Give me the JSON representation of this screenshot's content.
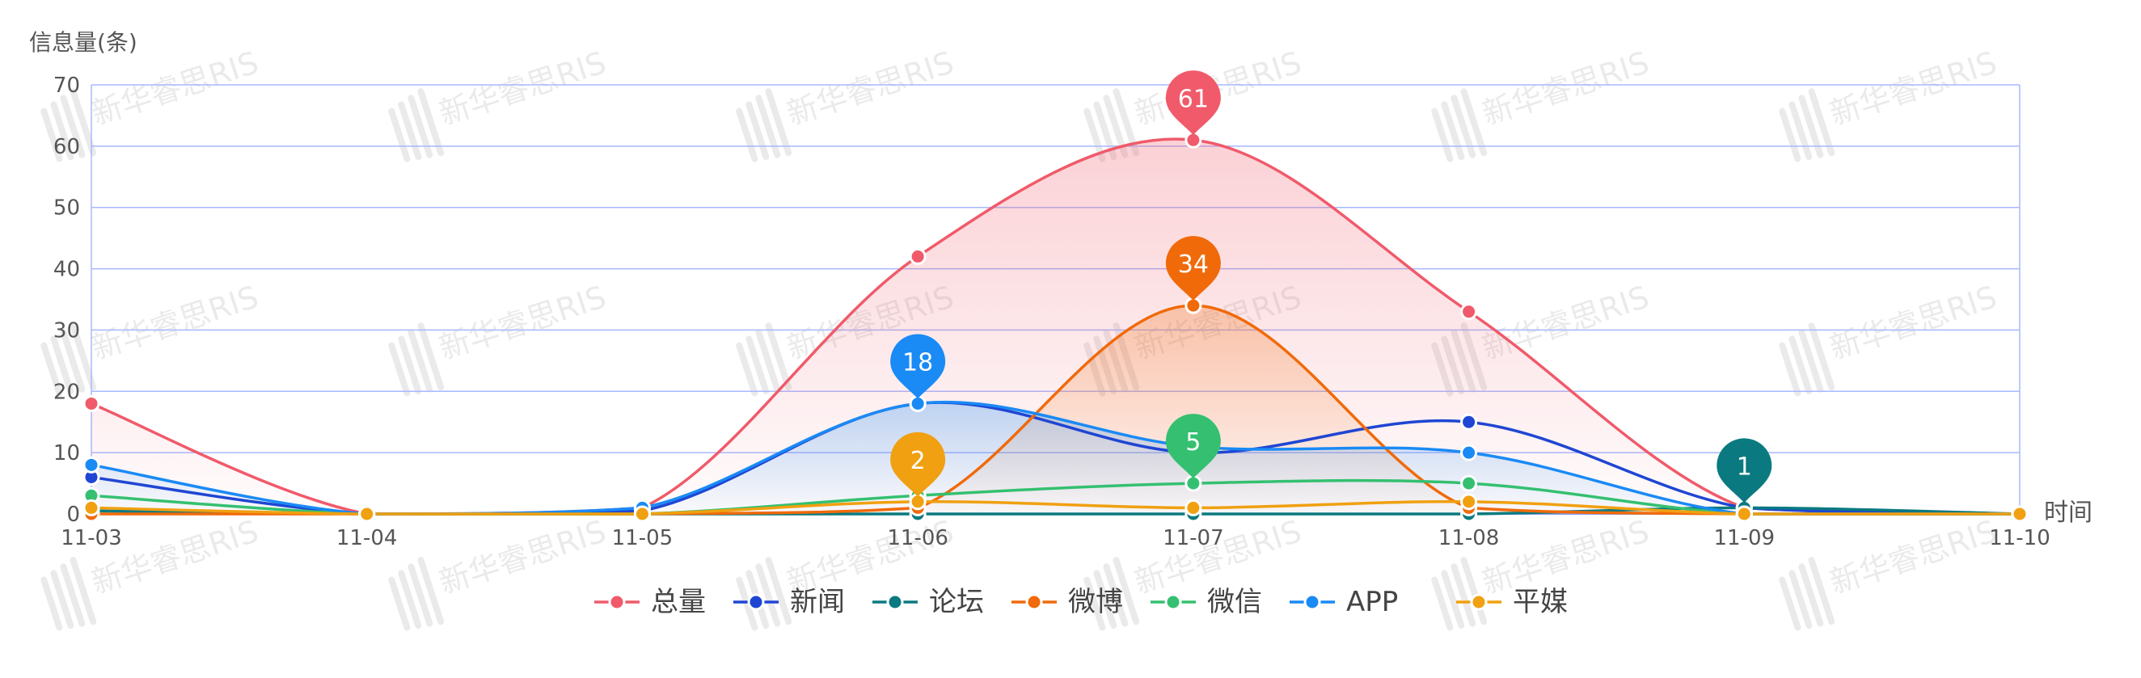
{
  "chart_data": {
    "type": "line",
    "smooth": true,
    "ylabel": "信息量(条)",
    "xlabel": "时间",
    "categories": [
      "11-03",
      "11-04",
      "11-05",
      "11-06",
      "11-07",
      "11-08",
      "11-09",
      "11-10"
    ],
    "ylim": [
      0,
      70
    ],
    "yticks": [
      0,
      10,
      20,
      30,
      40,
      50,
      60,
      70
    ],
    "grid": true,
    "legend_position": "bottom",
    "series": [
      {
        "name": "总量",
        "color": "#f05a6a",
        "area": true,
        "values": [
          18,
          0,
          1,
          42,
          61,
          33,
          1,
          0
        ],
        "max_label": "61"
      },
      {
        "name": "新闻",
        "color": "#1f46d3",
        "area": false,
        "values": [
          6,
          0,
          0.5,
          18,
          10,
          15,
          1,
          0
        ]
      },
      {
        "name": "论坛",
        "color": "#0a7a80",
        "area": false,
        "values": [
          0.5,
          0,
          0,
          0,
          0,
          0,
          1,
          0
        ],
        "max_label": "1"
      },
      {
        "name": "微博",
        "color": "#f06a0a",
        "area": true,
        "values": [
          0,
          0,
          0,
          1,
          34,
          1,
          0,
          0
        ],
        "max_label": "34"
      },
      {
        "name": "微信",
        "color": "#34c070",
        "area": false,
        "values": [
          3,
          0,
          0,
          3,
          5,
          5,
          0,
          0
        ],
        "max_label": "5"
      },
      {
        "name": "APP",
        "color": "#1a8af5",
        "area": true,
        "values": [
          8,
          0,
          1,
          18,
          11,
          10,
          0,
          0
        ],
        "max_label": "18"
      },
      {
        "name": "平媒",
        "color": "#f0a010",
        "area": false,
        "values": [
          1,
          0,
          0,
          2,
          1,
          2,
          0,
          0
        ],
        "max_label": "2"
      }
    ],
    "watermark": "新华睿思RIS"
  }
}
